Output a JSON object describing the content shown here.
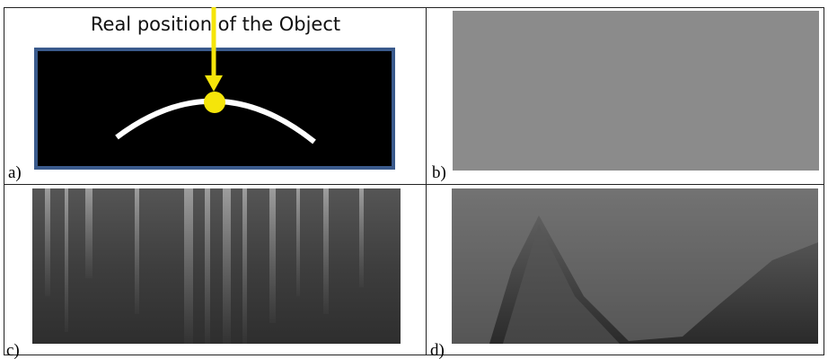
{
  "panels": [
    {
      "label": "a)",
      "annotation": "Real position of the Object"
    },
    {
      "label": "b)"
    },
    {
      "label": "c)"
    },
    {
      "label": "d)"
    }
  ]
}
